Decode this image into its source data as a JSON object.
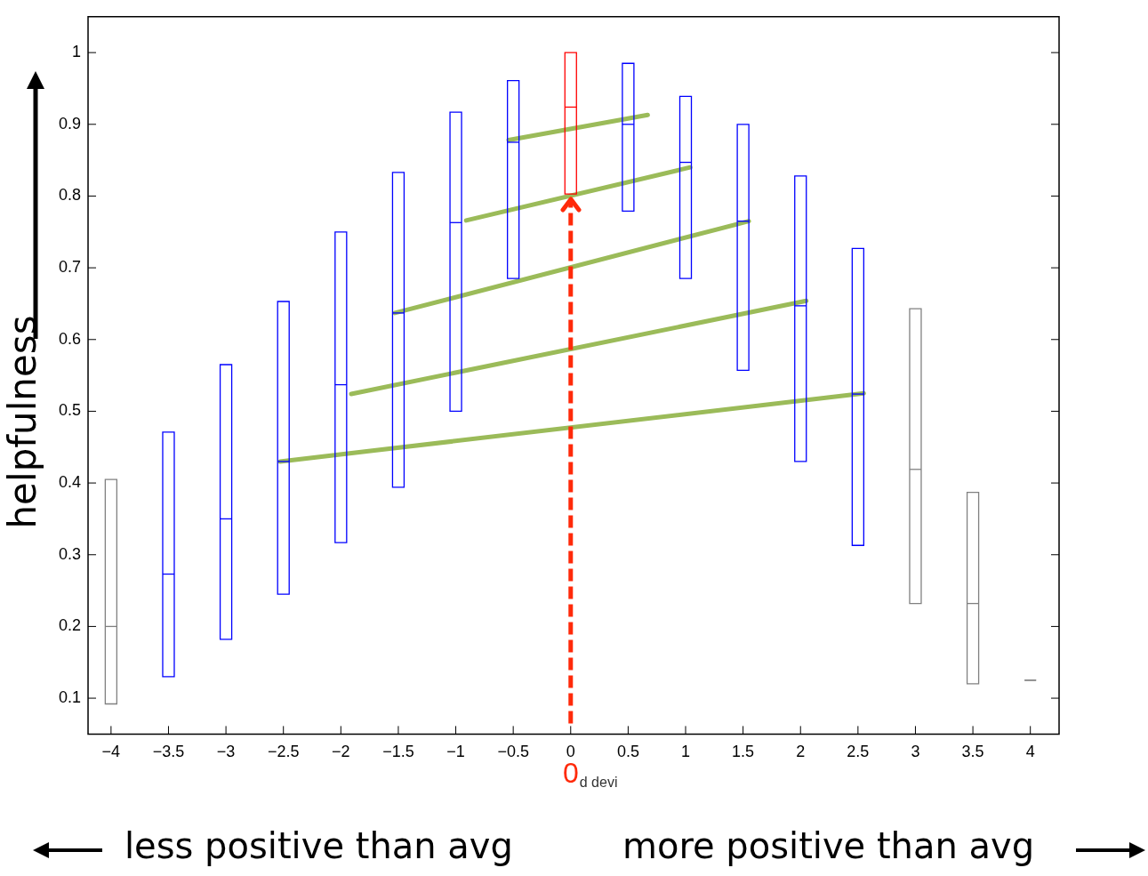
{
  "chart_data": {
    "type": "box",
    "xlabel": "d devi",
    "ylabel": "helpfulness",
    "xlim": [
      -4.2,
      4.25
    ],
    "xticks": [
      -4,
      -3.5,
      -3,
      -2.5,
      -2,
      -1.5,
      -1,
      -0.5,
      0,
      0.5,
      1,
      1.5,
      2,
      2.5,
      3,
      3.5,
      4
    ],
    "ylim": [
      0.05,
      1.05
    ],
    "yticks": [
      0.1,
      0.2,
      0.3,
      0.4,
      0.5,
      0.6,
      0.7,
      0.8,
      0.9,
      1
    ],
    "grid": false,
    "legend": false,
    "series": [
      {
        "type": "box",
        "color": "#808080",
        "x": [
          -4,
          3,
          3.5,
          4
        ],
        "boxes": [
          {
            "low": 0.092,
            "q1": 0.092,
            "median": 0.2,
            "q3": 0.405,
            "high": 0.405
          },
          {
            "low": 0.232,
            "q1": 0.232,
            "median": 0.419,
            "q3": 0.643,
            "high": 0.643
          },
          {
            "low": 0.12,
            "q1": 0.12,
            "median": 0.232,
            "q3": 0.387,
            "high": 0.387
          },
          {
            "low": 0.125,
            "q1": 0.125,
            "median": 0.125,
            "q3": 0.125,
            "high": 0.125
          }
        ]
      },
      {
        "type": "box",
        "color": "#0000ff",
        "x": [
          -3.5,
          -3,
          -2.5,
          -2,
          -1.5,
          -1,
          -0.5,
          0.5,
          1,
          1.5,
          2,
          2.5
        ],
        "boxes": [
          {
            "low": 0.13,
            "q1": 0.13,
            "median": 0.273,
            "q3": 0.471,
            "high": 0.471
          },
          {
            "low": 0.182,
            "q1": 0.182,
            "median": 0.35,
            "q3": 0.565,
            "high": 0.565
          },
          {
            "low": 0.245,
            "q1": 0.245,
            "median": 0.43,
            "q3": 0.653,
            "high": 0.653
          },
          {
            "low": 0.317,
            "q1": 0.317,
            "median": 0.537,
            "q3": 0.75,
            "high": 0.75
          },
          {
            "low": 0.394,
            "q1": 0.394,
            "median": 0.637,
            "q3": 0.833,
            "high": 0.833
          },
          {
            "low": 0.5,
            "q1": 0.5,
            "median": 0.763,
            "q3": 0.917,
            "high": 0.917
          },
          {
            "low": 0.685,
            "q1": 0.685,
            "median": 0.875,
            "q3": 0.961,
            "high": 0.961
          },
          {
            "low": 0.779,
            "q1": 0.779,
            "median": 0.9,
            "q3": 0.985,
            "high": 0.985
          },
          {
            "low": 0.685,
            "q1": 0.685,
            "median": 0.847,
            "q3": 0.939,
            "high": 0.939
          },
          {
            "low": 0.557,
            "q1": 0.557,
            "median": 0.765,
            "q3": 0.9,
            "high": 0.9
          },
          {
            "low": 0.43,
            "q1": 0.43,
            "median": 0.647,
            "q3": 0.828,
            "high": 0.828
          },
          {
            "low": 0.313,
            "q1": 0.313,
            "median": 0.524,
            "q3": 0.727,
            "high": 0.727
          }
        ]
      },
      {
        "type": "box",
        "color": "#ff0000",
        "x": [
          0
        ],
        "boxes": [
          {
            "low": 0.803,
            "q1": 0.803,
            "median": 0.924,
            "q3": 1,
            "high": 1
          }
        ]
      },
      {
        "type": "line",
        "color": "#9bbb59",
        "x": [
          -0.54,
          0.67
        ],
        "values": [
          0.878,
          0.913
        ]
      },
      {
        "type": "line",
        "color": "#9bbb59",
        "x": [
          -0.91,
          1.04
        ],
        "values": [
          0.766,
          0.84
        ]
      },
      {
        "type": "line",
        "color": "#9bbb59",
        "x": [
          -1.53,
          1.55
        ],
        "values": [
          0.637,
          0.765
        ]
      },
      {
        "type": "line",
        "color": "#9bbb59",
        "x": [
          -1.91,
          2.05
        ],
        "values": [
          0.524,
          0.654
        ]
      },
      {
        "type": "line",
        "color": "#9bbb59",
        "x": [
          -2.53,
          2.55
        ],
        "values": [
          0.43,
          0.525
        ]
      }
    ],
    "ref_lines": [
      {
        "axis": "x",
        "value": 0,
        "label": "0",
        "color": "#ff2a0a",
        "line_style": "dashed"
      }
    ],
    "annotations": [
      "less positive than avg",
      "more positive than avg"
    ]
  }
}
